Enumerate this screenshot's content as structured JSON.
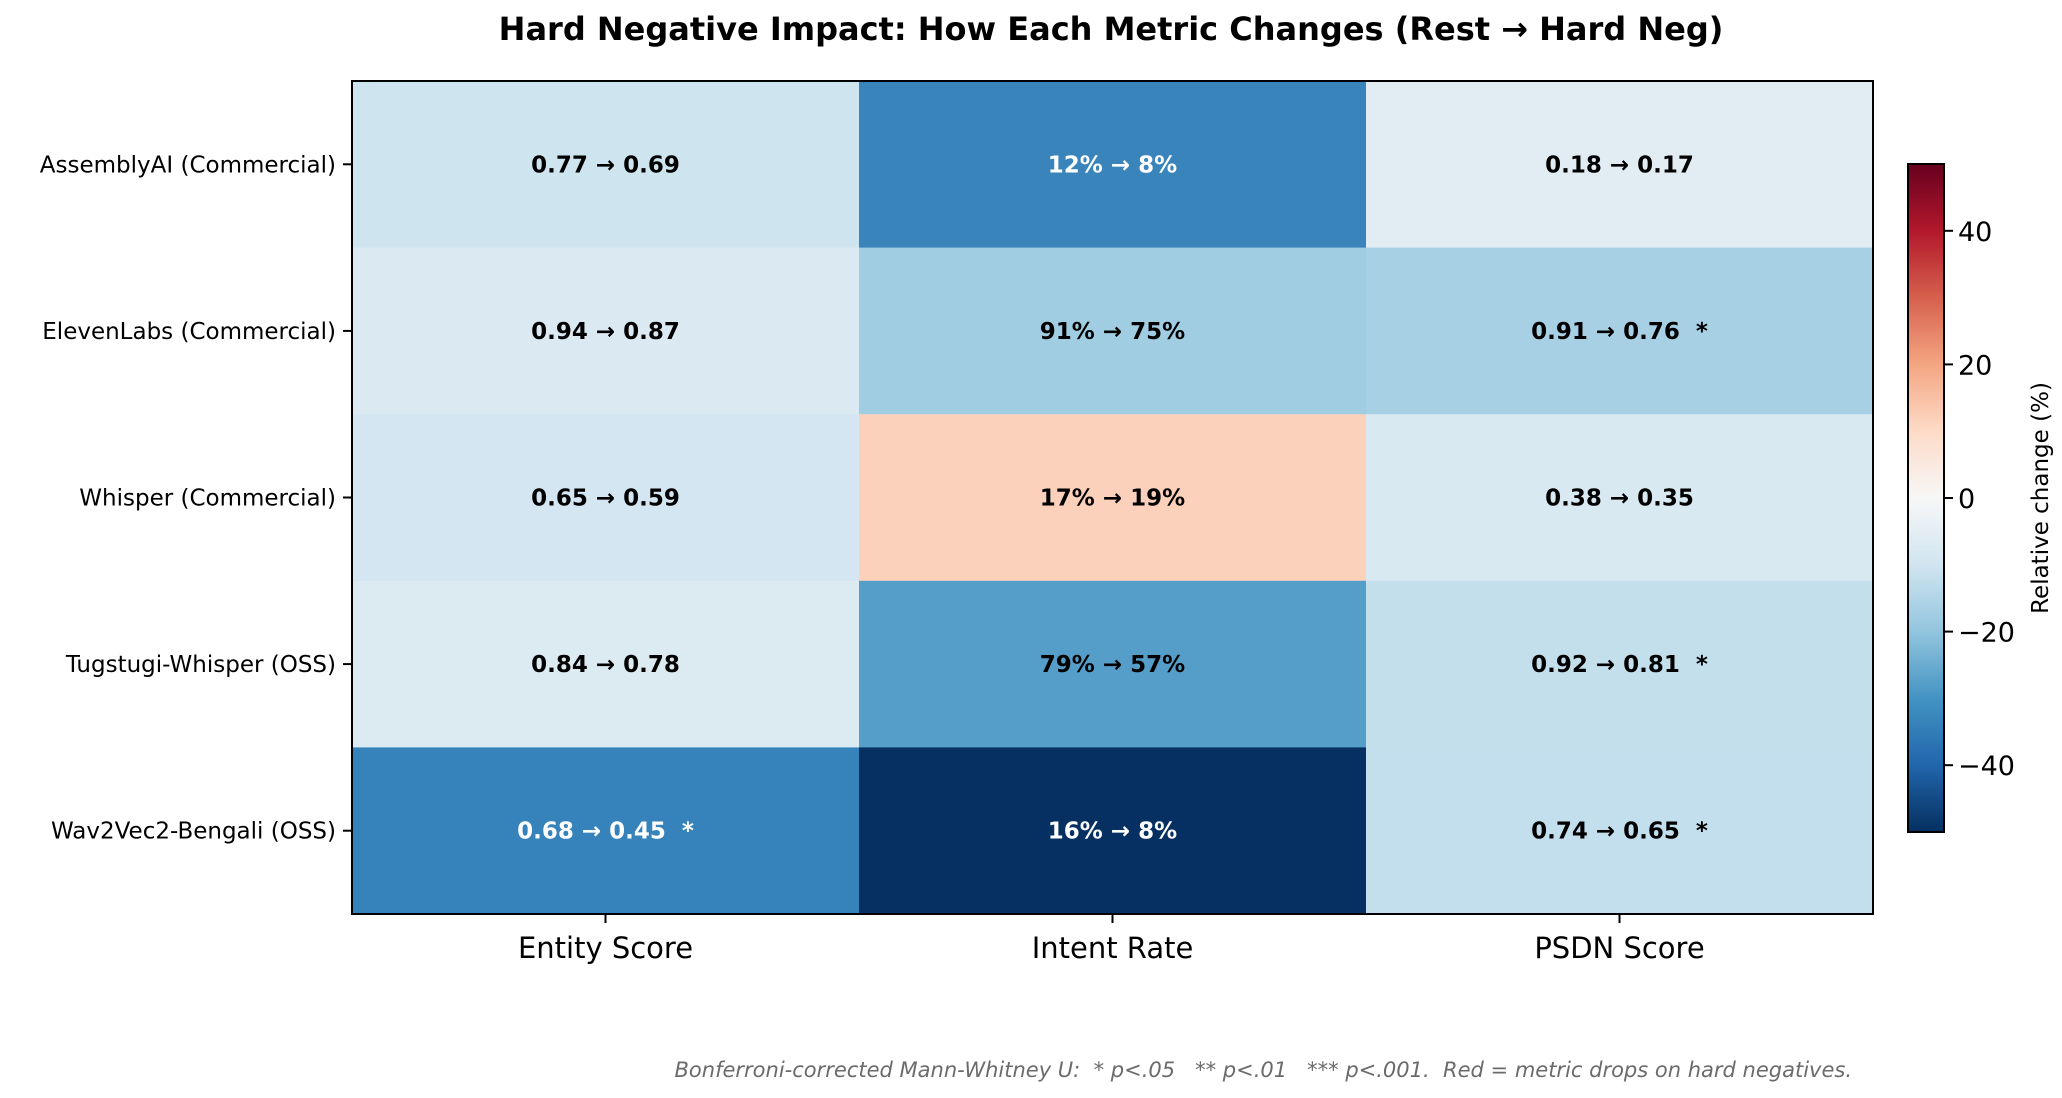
{
  "chart_data": {
    "type": "heatmap",
    "title": "Hard Negative Impact: How Each Metric Changes (Rest → Hard Neg)",
    "rows": [
      "AssemblyAI (Commercial)",
      "ElevenLabs (Commercial)",
      "Whisper (Commercial)",
      "Tugstugi-Whisper (OSS)",
      "Wav2Vec2-Bengali (OSS)"
    ],
    "columns": [
      "Entity Score",
      "Intent Rate",
      "PSDN Score"
    ],
    "relative_change_pct": [
      [
        -10.4,
        -33.3,
        -5.6
      ],
      [
        -7.4,
        -17.6,
        -16.5
      ],
      [
        -9.2,
        11.8,
        -7.9
      ],
      [
        -7.1,
        -27.8,
        -12.0
      ],
      [
        -33.8,
        -50.0,
        -12.2
      ]
    ],
    "cell_labels": [
      [
        "0.77 → 0.69",
        "12% → 8%",
        "0.18 → 0.17"
      ],
      [
        "0.94 → 0.87",
        "91% → 75%",
        "0.91 → 0.76  *"
      ],
      [
        "0.65 → 0.59",
        "17% → 19%",
        "0.38 → 0.35"
      ],
      [
        "0.84 → 0.78",
        "79% → 57%",
        "0.92 → 0.81  *"
      ],
      [
        "0.68 → 0.45  *",
        "16% → 8%",
        "0.74 → 0.65  *"
      ]
    ],
    "colorbar": {
      "label": "Relative change (%)",
      "range": [
        -50,
        50
      ],
      "ticks": [
        40,
        20,
        0,
        -20,
        -40
      ],
      "tick_labels": [
        "40",
        "20",
        "0",
        "−20",
        "−40"
      ],
      "colormap": "RdBu_r"
    },
    "footnote": "Bonferroni-corrected Mann-Whitney U:  * p<.05   ** p<.01   *** p<.001.  Red = metric drops on hard negatives."
  }
}
